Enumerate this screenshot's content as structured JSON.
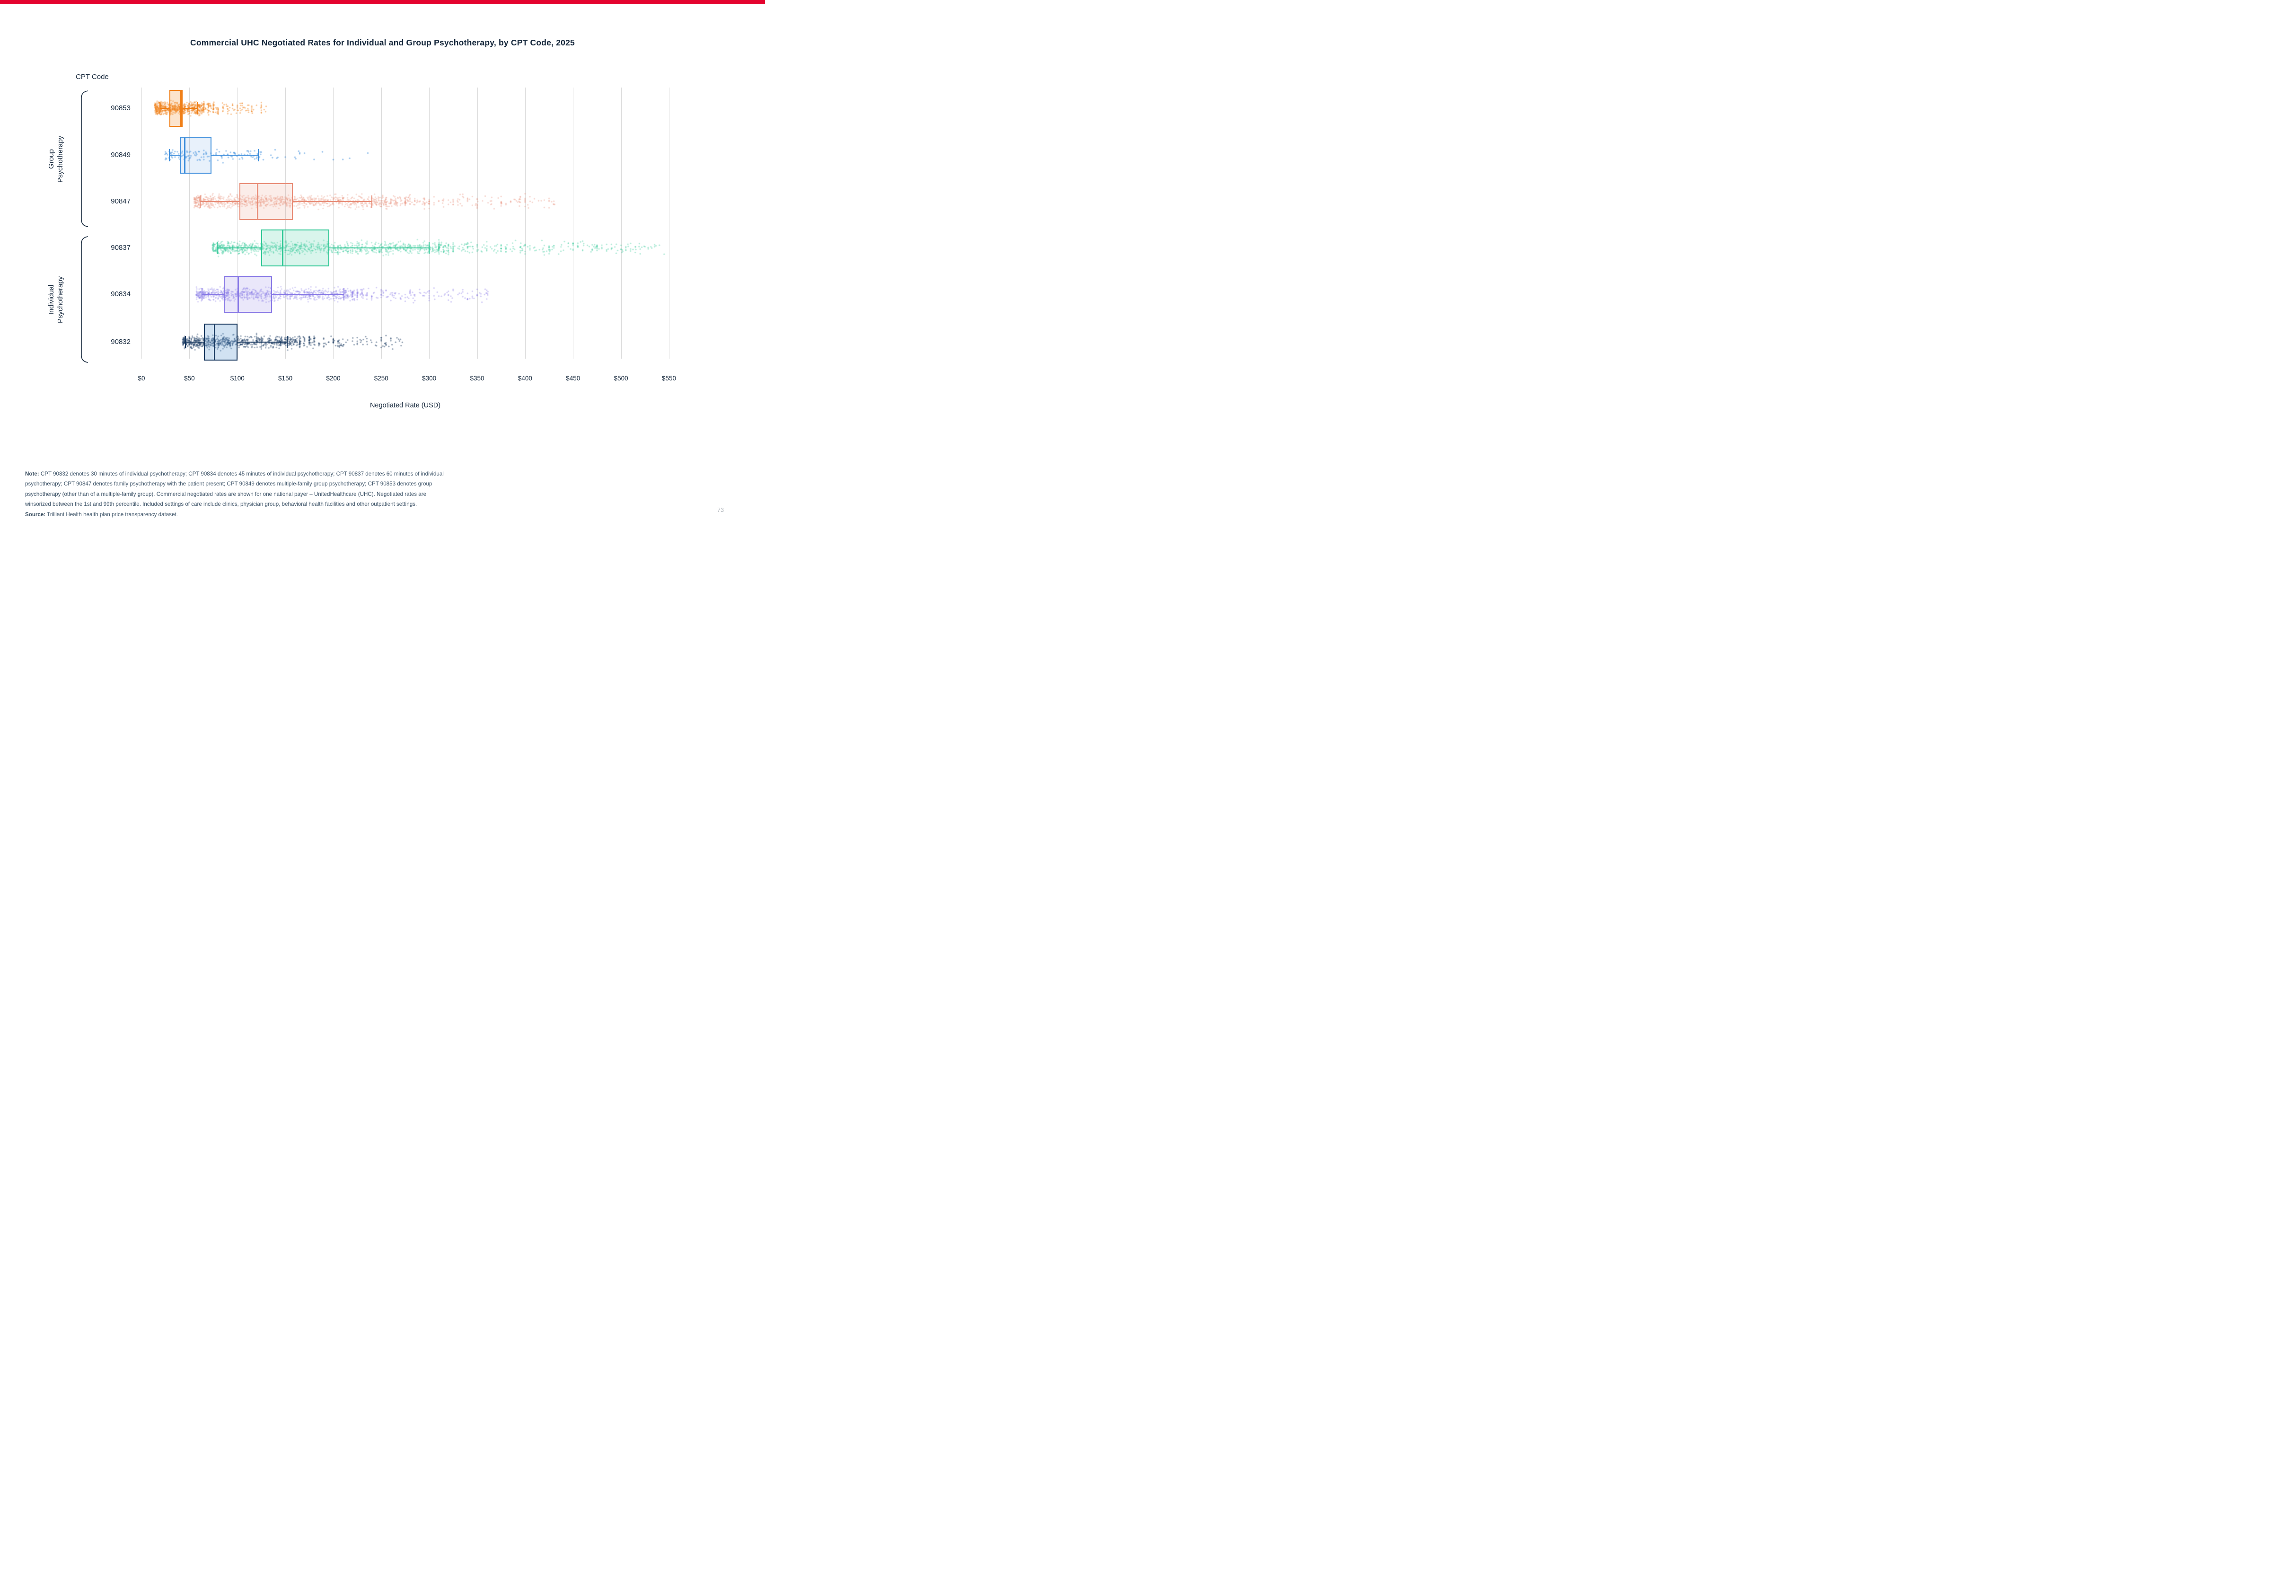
{
  "page": {
    "top_bar_color": "#E4032E",
    "page_number": "73"
  },
  "title": "Commercial UHC Negotiated Rates for Individual and Group Psychotherapy, by CPT Code, 2025",
  "chart": {
    "y_axis_title": "CPT Code",
    "x_axis_title": "Negotiated Rate (USD)",
    "groups": [
      {
        "lines": [
          "Group",
          "Psychotherapy"
        ],
        "row_span": [
          0,
          2
        ]
      },
      {
        "lines": [
          "Individual",
          "Psychotherapy"
        ],
        "row_span": [
          3,
          5
        ]
      }
    ],
    "grid_color": "#DADADA"
  },
  "chart_data": {
    "type": "box-strip",
    "unit": "USD",
    "x_axis": {
      "min": 0,
      "max": 550,
      "tick_step": 50,
      "tick_labels": [
        "$0",
        "$50",
        "$100",
        "$150",
        "$200",
        "$250",
        "$300",
        "$350",
        "$400",
        "$450",
        "$500",
        "$550"
      ]
    },
    "series": [
      {
        "cpt": "90853",
        "group": "Group Psychotherapy",
        "color": "#F08019",
        "fill": "rgba(243,146,55,0.25)",
        "box": {
          "whisker_lo": 19,
          "q1": 29,
          "median": 41,
          "q3": 43,
          "whisker_hi": 58
        },
        "points": {
          "min": 14,
          "dense_to": 64,
          "max": 130,
          "n_core": 620,
          "n_tail": 150,
          "skew_core": 1.25,
          "skew_tail": 1.6,
          "alpha": 0.38,
          "radius": 1.7
        }
      },
      {
        "cpt": "90849",
        "group": "Group Psychotherapy",
        "color": "#3F8FDC",
        "fill": "rgba(63,143,220,0.12)",
        "box": {
          "whisker_lo": 29,
          "q1": 40,
          "median": 45,
          "q3": 73,
          "whisker_hi": 122
        },
        "points": {
          "min": 24,
          "dense_to": 125,
          "max": 240,
          "n_core": 125,
          "n_tail": 20,
          "skew_core": 1.15,
          "skew_tail": 1.6,
          "alpha": 0.45,
          "radius": 1.8
        }
      },
      {
        "cpt": "90847",
        "group": "Group Psychotherapy",
        "color": "#E88D78",
        "fill": "rgba(232,141,120,0.16)",
        "box": {
          "whisker_lo": 61,
          "q1": 102,
          "median": 121,
          "q3": 158,
          "whisker_hi": 240
        },
        "points": {
          "min": 55,
          "dense_to": 255,
          "max": 435,
          "n_core": 900,
          "n_tail": 230,
          "skew_core": 1.3,
          "skew_tail": 1.8,
          "alpha": 0.3,
          "radius": 1.7
        }
      },
      {
        "cpt": "90837",
        "group": "Individual Psychotherapy",
        "color": "#2FC795",
        "fill": "rgba(47,199,149,0.18)",
        "box": {
          "whisker_lo": 79,
          "q1": 125,
          "median": 147,
          "q3": 196,
          "whisker_hi": 300
        },
        "points": {
          "min": 74,
          "dense_to": 310,
          "max": 545,
          "n_core": 1000,
          "n_tail": 300,
          "skew_core": 1.3,
          "skew_tail": 1.8,
          "alpha": 0.3,
          "radius": 1.7
        }
      },
      {
        "cpt": "90834",
        "group": "Individual Psychotherapy",
        "color": "#8A7BE6",
        "fill": "rgba(138,123,230,0.18)",
        "box": {
          "whisker_lo": 63,
          "q1": 86,
          "median": 101,
          "q3": 136,
          "whisker_hi": 211
        },
        "points": {
          "min": 57,
          "dense_to": 220,
          "max": 362,
          "n_core": 820,
          "n_tail": 190,
          "skew_core": 1.3,
          "skew_tail": 1.8,
          "alpha": 0.32,
          "radius": 1.7
        }
      },
      {
        "cpt": "90832",
        "group": "Individual Psychotherapy",
        "color": "#17375E",
        "fill": "rgba(90,150,210,0.28)",
        "box": {
          "whisker_lo": 46,
          "q1": 65,
          "median": 76,
          "q3": 100,
          "whisker_hi": 152
        },
        "points": {
          "min": 43,
          "dense_to": 165,
          "max": 272,
          "n_core": 720,
          "n_tail": 150,
          "skew_core": 1.3,
          "skew_tail": 1.8,
          "alpha": 0.4,
          "radius": 1.7
        }
      }
    ]
  },
  "note": {
    "lines": [
      {
        "bold": "Note:",
        "text": " CPT 90832 denotes 30 minutes of individual psychotherapy; CPT 90834 denotes 45 minutes of individual psychotherapy; CPT 90837 denotes 60 minutes of individual"
      },
      {
        "bold": "",
        "text": "psychotherapy; CPT 90847 denotes family psychotherapy with the patient present; CPT 90849 denotes multiple-family group psychotherapy; CPT 90853 denotes group"
      },
      {
        "bold": "",
        "text": "psychotherapy (other than of a multiple-family group). Commercial negotiated rates are shown for one national payer – UnitedHealthcare (UHC). Negotiated rates are"
      },
      {
        "bold": "",
        "text": "winsorized between the 1st and 99th percentile. Included settings of care include clinics, physician group, behavioral health facilities and other outpatient settings."
      },
      {
        "bold": "Source:",
        "text": " Trilliant Health health plan price transparency dataset."
      }
    ]
  }
}
